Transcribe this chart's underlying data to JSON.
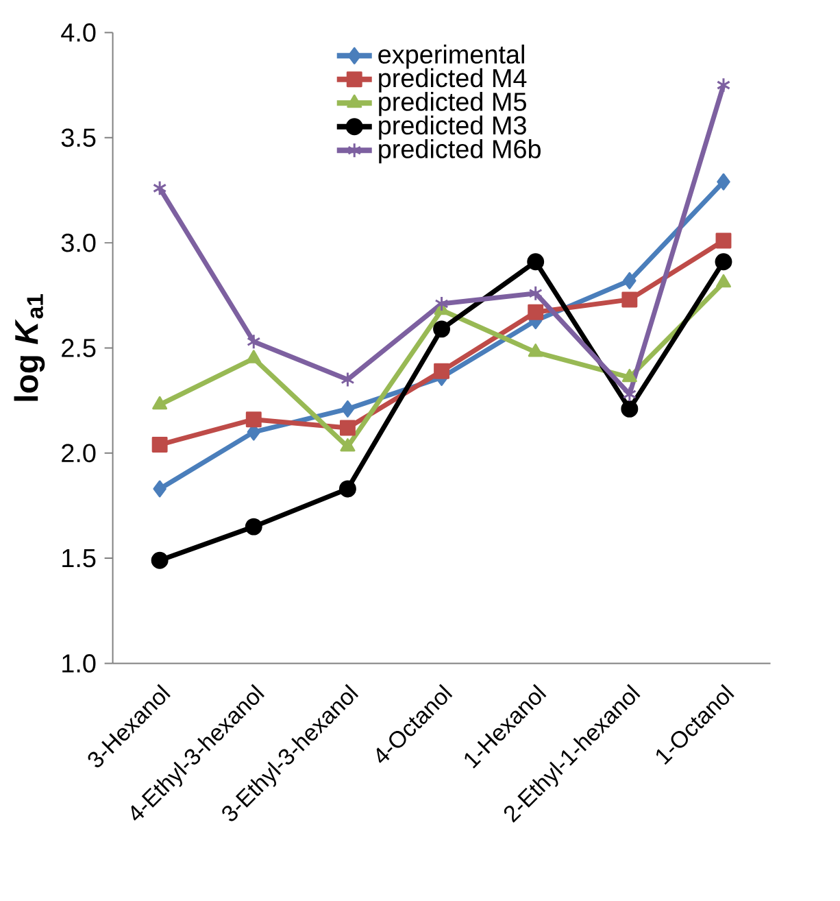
{
  "chart_data": {
    "type": "line",
    "ylabel": "log *K*$_{a1}$",
    "categories": [
      "3-Hexanol",
      "4-Ethyl-3-hexanol",
      "3-Ethyl-3-hexanol",
      "4-Octanol",
      "1-Hexanol",
      "2-Ethyl-1-hexanol",
      "1-Octanol"
    ],
    "series": [
      {
        "name": "experimental",
        "color": "#4a7ebb",
        "marker": "diamond",
        "values": [
          1.83,
          2.1,
          2.21,
          2.36,
          2.63,
          2.82,
          3.29
        ]
      },
      {
        "name": "predicted M4",
        "color": "#be4b48",
        "marker": "square",
        "values": [
          2.04,
          2.16,
          2.12,
          2.39,
          2.67,
          2.73,
          3.01
        ]
      },
      {
        "name": "predicted M5",
        "color": "#98b954",
        "marker": "triangle",
        "values": [
          2.23,
          2.45,
          2.03,
          2.68,
          2.48,
          2.36,
          2.81
        ]
      },
      {
        "name": "predicted M3",
        "color": "#000000",
        "marker": "circle",
        "values": [
          1.49,
          1.65,
          1.83,
          2.59,
          2.91,
          2.21,
          2.91
        ]
      },
      {
        "name": "predicted M6b",
        "color": "#7d60a0",
        "marker": "cross",
        "values": [
          3.26,
          2.53,
          2.35,
          2.71,
          2.76,
          2.28,
          3.75
        ]
      }
    ],
    "ylim": [
      1.0,
      4.0
    ],
    "yticks": [
      {
        "value": 1.0,
        "label": "1.0"
      },
      {
        "value": 1.5,
        "label": "1.5"
      },
      {
        "value": 2.0,
        "label": "2.0"
      },
      {
        "value": 2.5,
        "label": "2.5"
      },
      {
        "value": 3.0,
        "label": "3.0"
      },
      {
        "value": 3.5,
        "label": "3.5"
      },
      {
        "value": 4.0,
        "label": "4.0"
      }
    ],
    "grid": false,
    "legend": "top"
  }
}
